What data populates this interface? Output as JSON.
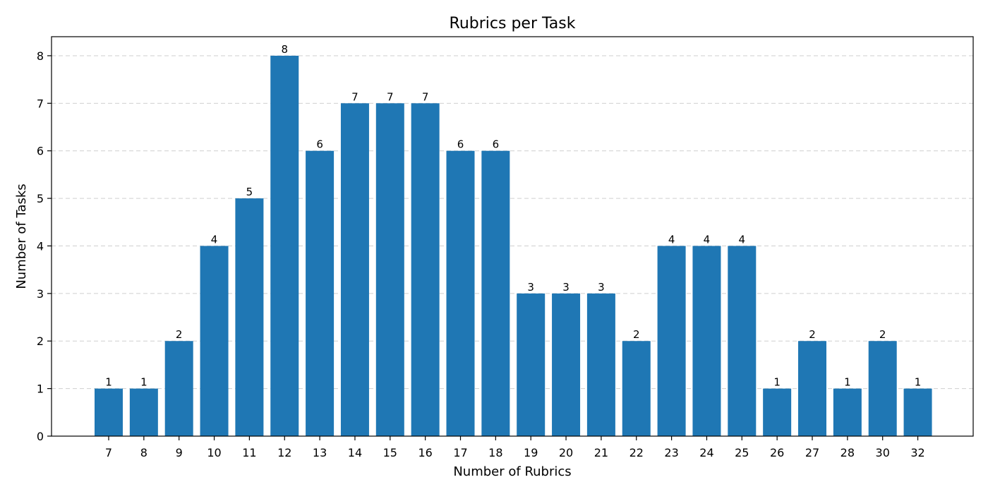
{
  "chart_data": {
    "type": "bar",
    "title": "Rubrics per Task",
    "xlabel": "Number of Rubrics",
    "ylabel": "Number of Tasks",
    "categories": [
      "7",
      "8",
      "9",
      "10",
      "11",
      "12",
      "13",
      "14",
      "15",
      "16",
      "17",
      "18",
      "19",
      "20",
      "21",
      "22",
      "23",
      "24",
      "25",
      "26",
      "27",
      "28",
      "30",
      "32"
    ],
    "values": [
      1,
      1,
      2,
      4,
      5,
      8,
      6,
      7,
      7,
      7,
      6,
      6,
      3,
      3,
      3,
      2,
      4,
      4,
      4,
      1,
      2,
      1,
      2,
      1
    ],
    "yticks": [
      0,
      1,
      2,
      3,
      4,
      5,
      6,
      7,
      8
    ],
    "ylim": [
      0,
      8.4
    ],
    "grid": "y-dashed",
    "bar_color": "#1f77b4",
    "show_data_labels": true
  }
}
